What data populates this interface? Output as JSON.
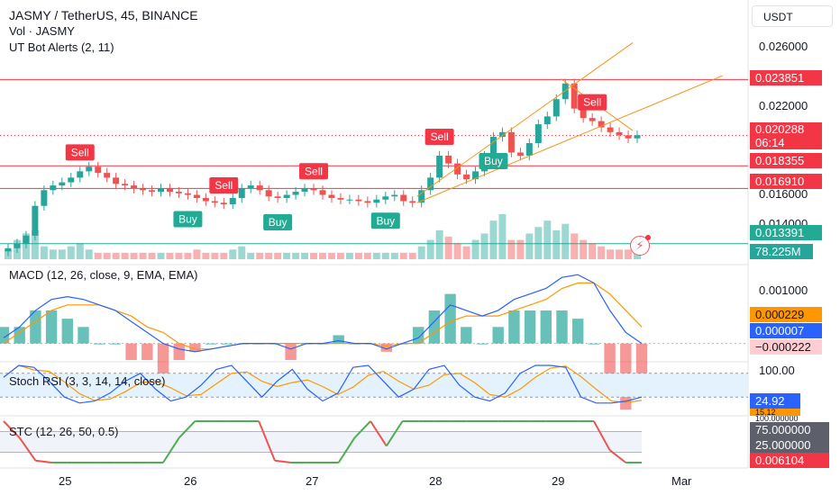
{
  "header": {
    "title": "JASMY / TetherUS, 45, BINANCE",
    "vol_label": "Vol · JASMY",
    "indicator": "UT Bot Alerts (2, 11)",
    "currency_button": "USDT"
  },
  "colors": {
    "up": "#26a69a",
    "down": "#ef5350",
    "accent_line": "#f7931a",
    "macd_line": "#2962ff",
    "signal_line": "#ff9800",
    "green_pill": "#22ab94",
    "red_pill": "#f23645",
    "stoch_k": "#2962ff",
    "stoch_d": "#ff9800",
    "stoch_band": "#e3f2fd"
  },
  "price_axis": {
    "ticks": [
      "0.026000",
      "0.022000",
      "0.016000",
      "0.014000"
    ]
  },
  "price_labels": {
    "resistance": "0.023851",
    "current_price": "0.020288",
    "countdown": "06:14",
    "line2": "0.018355",
    "line3": "0.016910",
    "support": "0.013391",
    "volume": "78.225M"
  },
  "signals": {
    "sell": "Sell",
    "buy": "Buy"
  },
  "macd": {
    "label": "MACD (12, 26, close, 9, EMA, EMA)",
    "tick": "0.001000",
    "signal_value": "0.000229",
    "macd_value": "0.000007",
    "hist_value": "−0.000222"
  },
  "stoch": {
    "label": "Stoch RSI (3, 3, 14, 14, close)",
    "tick": "100.00",
    "value": "24.92",
    "value2": "15.12"
  },
  "stc": {
    "label": "STC (12, 26, 50, 0.5)",
    "value_75": "75.000000",
    "value_25": "25.000000",
    "value": "0.006104",
    "value_extra": "100.000000"
  },
  "time_axis": {
    "labels": [
      "25",
      "26",
      "27",
      "28",
      "29",
      "Mar"
    ]
  },
  "chart_data": {
    "type": "candlestick",
    "title": "JASMY / TetherUS, 45, BINANCE",
    "price_range": [
      0.0124,
      0.0272
    ],
    "days": [
      "25",
      "26",
      "27",
      "28",
      "29",
      "Mar"
    ],
    "close_series": [
      0.0131,
      0.0134,
      0.0139,
      0.0158,
      0.0168,
      0.0171,
      0.0173,
      0.0176,
      0.018,
      0.0183,
      0.0179,
      0.0176,
      0.0172,
      0.0171,
      0.0169,
      0.0168,
      0.0167,
      0.0169,
      0.0167,
      0.0166,
      0.0165,
      0.0163,
      0.0161,
      0.016,
      0.0159,
      0.0163,
      0.0169,
      0.0171,
      0.0168,
      0.0164,
      0.0163,
      0.0165,
      0.0167,
      0.0169,
      0.0168,
      0.0165,
      0.0163,
      0.0162,
      0.0162,
      0.0161,
      0.016,
      0.0162,
      0.0164,
      0.0165,
      0.0161,
      0.016,
      0.0168,
      0.0176,
      0.019,
      0.0185,
      0.0178,
      0.0175,
      0.018,
      0.019,
      0.0202,
      0.0205,
      0.0192,
      0.019,
      0.0198,
      0.021,
      0.0215,
      0.0226,
      0.0236,
      0.022,
      0.0214,
      0.0212,
      0.0208,
      0.0205,
      0.0203,
      0.0201,
      0.0203
    ],
    "horizontal_levels": [
      {
        "value": 0.023851,
        "color": "#f23645"
      },
      {
        "value": 0.020288,
        "color": "#f23645",
        "style": "dotted"
      },
      {
        "value": 0.018355,
        "color": "#f23645"
      },
      {
        "value": 0.01691,
        "color": "#f23645"
      },
      {
        "value": 0.013391,
        "color": "#22ab94"
      }
    ],
    "signals": [
      {
        "type": "Sell",
        "index": 8
      },
      {
        "type": "Buy",
        "index": 20
      },
      {
        "type": "Sell",
        "index": 24
      },
      {
        "type": "Buy",
        "index": 30
      },
      {
        "type": "Sell",
        "index": 34
      },
      {
        "type": "Buy",
        "index": 42
      },
      {
        "type": "Sell",
        "index": 48
      },
      {
        "type": "Buy",
        "index": 54
      },
      {
        "type": "Sell",
        "index": 65
      }
    ],
    "volume": [
      3,
      6,
      8,
      9,
      4,
      3,
      3,
      4,
      5,
      3,
      2,
      2,
      2,
      2,
      2,
      2,
      2,
      2,
      2,
      2,
      2,
      3,
      2,
      2,
      2,
      3,
      4,
      2,
      2,
      2,
      2,
      2,
      2,
      2,
      2,
      2,
      2,
      2,
      2,
      2,
      2,
      2,
      2,
      2,
      2,
      2,
      4,
      6,
      9,
      7,
      5,
      4,
      6,
      8,
      12,
      14,
      6,
      6,
      8,
      10,
      12,
      9,
      11,
      8,
      6,
      5,
      4,
      3,
      3,
      3,
      2
    ],
    "macd": {
      "macd_line": [
        0.0001,
        0.0003,
        0.0006,
        0.0008,
        0.00085,
        0.0008,
        0.0007,
        0.0006,
        0.0004,
        0.0002,
        0.0,
        -0.0001,
        -0.00015,
        -0.0001,
        -5e-05,
        0.0,
        0.0,
        0.0,
        -0.0001,
        0.0,
        0.0,
        5e-05,
        0.0,
        0.0,
        -0.0001,
        0.0,
        0.0001,
        0.0004,
        0.0007,
        0.0006,
        0.0005,
        0.0006,
        0.0008,
        0.0009,
        0.001,
        0.0012,
        0.00125,
        0.0011,
        0.0006,
        0.0002,
        0.0
      ],
      "signal_line": [
        0.0,
        0.0002,
        0.0004,
        0.0006,
        0.0007,
        0.0007,
        0.0007,
        0.0006,
        0.0005,
        0.0003,
        0.0002,
        0.0,
        -0.0001,
        -0.0001,
        -5e-05,
        0.0,
        0.0,
        0.0,
        0.0,
        0.0,
        0.0,
        0.0,
        0.0,
        0.0,
        -5e-05,
        0.0,
        0.0,
        0.0002,
        0.0004,
        0.0005,
        0.0005,
        0.0005,
        0.0006,
        0.0007,
        0.0008,
        0.001,
        0.0011,
        0.0011,
        0.0009,
        0.0006,
        0.0003
      ],
      "ylim": [
        -0.0003,
        0.0014
      ]
    },
    "stoch_rsi": {
      "k": [
        70,
        100,
        95,
        60,
        20,
        5,
        10,
        30,
        60,
        80,
        40,
        10,
        20,
        50,
        90,
        100,
        60,
        20,
        60,
        90,
        40,
        10,
        30,
        95,
        100,
        60,
        20,
        40,
        90,
        100,
        50,
        20,
        10,
        30,
        80,
        100,
        100,
        95,
        20,
        5,
        5,
        10,
        20
      ],
      "ylim": [
        0,
        100
      ]
    },
    "stc": {
      "values": [
        100,
        60,
        5,
        0,
        0,
        0,
        0,
        0,
        0,
        0,
        0,
        60,
        100,
        100,
        100,
        100,
        100,
        5,
        0,
        0,
        0,
        0,
        60,
        100,
        40,
        100,
        100,
        100,
        100,
        100,
        100,
        100,
        100,
        100,
        100,
        100,
        100,
        100,
        30,
        0,
        0
      ],
      "ylim": [
        0,
        100
      ]
    }
  }
}
